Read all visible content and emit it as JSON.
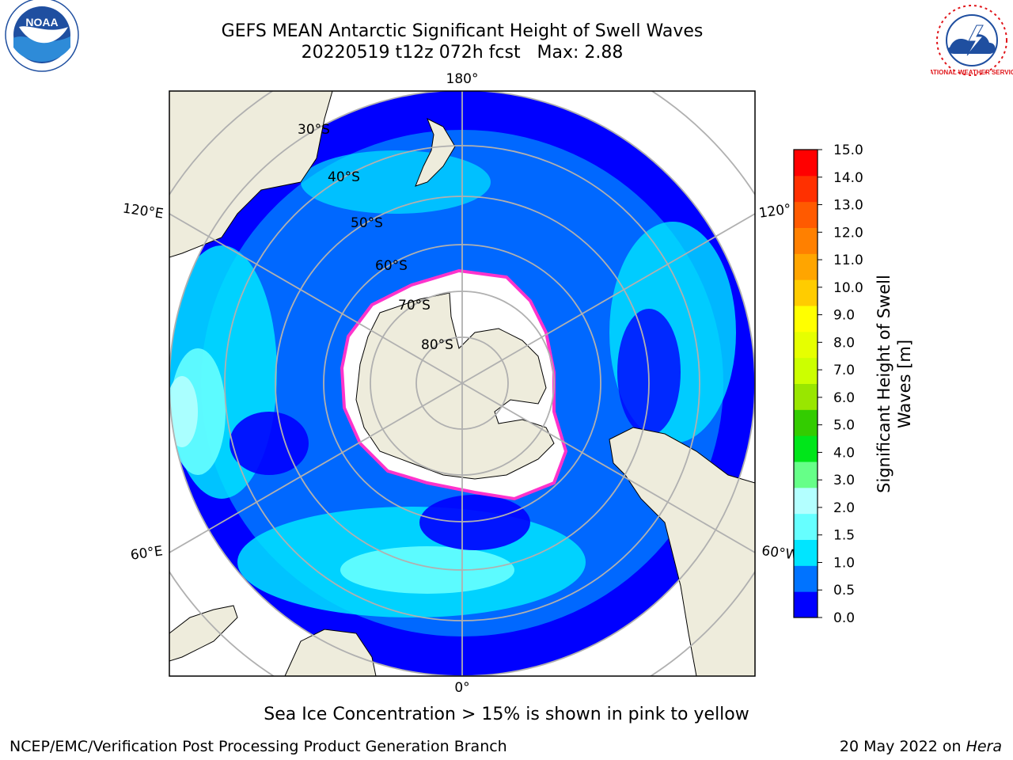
{
  "header": {
    "title_line1": "GEFS MEAN Antarctic Significant Height of Swell Waves",
    "title_line2": "20220519 t12z 072h fcst   Max: 2.88"
  },
  "logos": {
    "left": {
      "name": "NOAA",
      "text": "NOAA",
      "color": "#1f4fa0"
    },
    "right": {
      "name": "National Weather Service",
      "text": "NATIONAL WEATHER SERVICE",
      "color": "#e0161b"
    }
  },
  "map": {
    "longitude_labels": {
      "top": "180°",
      "bottom": "0°",
      "upper_left": "120°E",
      "upper_right": "120°",
      "lower_left": "60°E",
      "lower_right": "60°W"
    },
    "latitude_labels": [
      "30°S",
      "40°S",
      "50°S",
      "60°S",
      "70°S",
      "80°S"
    ],
    "colors": {
      "land": "#eeecdc",
      "ice_shelf": "#ffffff",
      "sea_ice_edge": "#ff33cc",
      "grid": "#b0b0b0"
    }
  },
  "colorbar": {
    "label_line1": "Significant Height of Swell",
    "label_line2": "Waves [m]",
    "ticks": [
      "15.0",
      "14.0",
      "13.0",
      "12.0",
      "11.0",
      "10.0",
      "9.0",
      "8.0",
      "7.0",
      "6.0",
      "5.0",
      "4.0",
      "3.0",
      "2.0",
      "1.5",
      "1.0",
      "0.5",
      "0.0"
    ],
    "colors_bottom_to_top": [
      "#0000ff",
      "#0073ff",
      "#00e5ff",
      "#66ffff",
      "#b3ffff",
      "#66ff88",
      "#00e61a",
      "#33cc00",
      "#99e600",
      "#ccff00",
      "#e6ff00",
      "#ffff00",
      "#ffcc00",
      "#ffa500",
      "#ff8000",
      "#ff5a00",
      "#ff3000",
      "#ff0000"
    ]
  },
  "caption": "Sea Ice Concentration > 15% is shown in pink to yellow",
  "footer": {
    "left": "NCEP/EMC/Verification Post Processing Product Generation Branch",
    "right_prefix": "20 May 2022 on ",
    "right_host": "Hera"
  }
}
